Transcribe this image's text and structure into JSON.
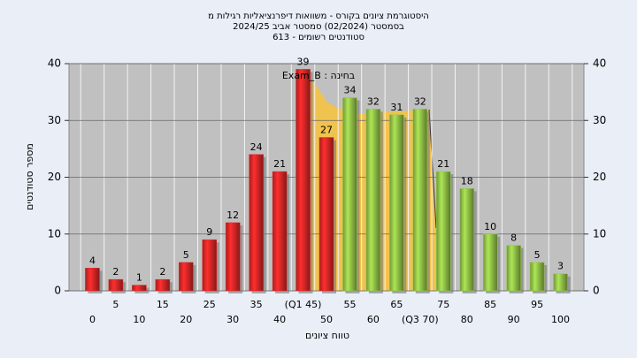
{
  "chart_data": {
    "type": "bar",
    "title": [
      "היסטוגרמת ציונים בקורס - משוואות דיפרנציאליות רגילות מ",
      "בסמסטר  (02/2024)  סמסטר אביב 2024/25",
      "סטודנטים רשומים - 613"
    ],
    "annotation": "בחינה : Exam_B",
    "x_label": "טווח ציונים",
    "y_label": "מספר סטודנטים",
    "categories": [
      "0",
      "5",
      "10",
      "15",
      "20",
      "25",
      "30",
      "35",
      "40",
      "(Q1 45)",
      "50",
      "55",
      "60",
      "65",
      "(Q3 70)",
      "75",
      "80",
      "85",
      "90",
      "95",
      "100"
    ],
    "values": [
      4,
      2,
      1,
      2,
      5,
      9,
      12,
      24,
      21,
      39,
      27,
      34,
      32,
      31,
      32,
      21,
      18,
      10,
      8,
      5,
      3
    ],
    "colors": [
      "#e02828",
      "#e02828",
      "#e02828",
      "#e02828",
      "#e02828",
      "#e02828",
      "#e02828",
      "#e02828",
      "#e02828",
      "#e02828",
      "#e02828",
      "#96c84a",
      "#96c84a",
      "#96c84a",
      "#96c84a",
      "#96c84a",
      "#96c84a",
      "#96c84a",
      "#96c84a",
      "#96c84a",
      "#96c84a"
    ],
    "ylim": [
      0,
      40
    ],
    "yticks": [
      0,
      10,
      20,
      30,
      40
    ],
    "grid": true
  }
}
